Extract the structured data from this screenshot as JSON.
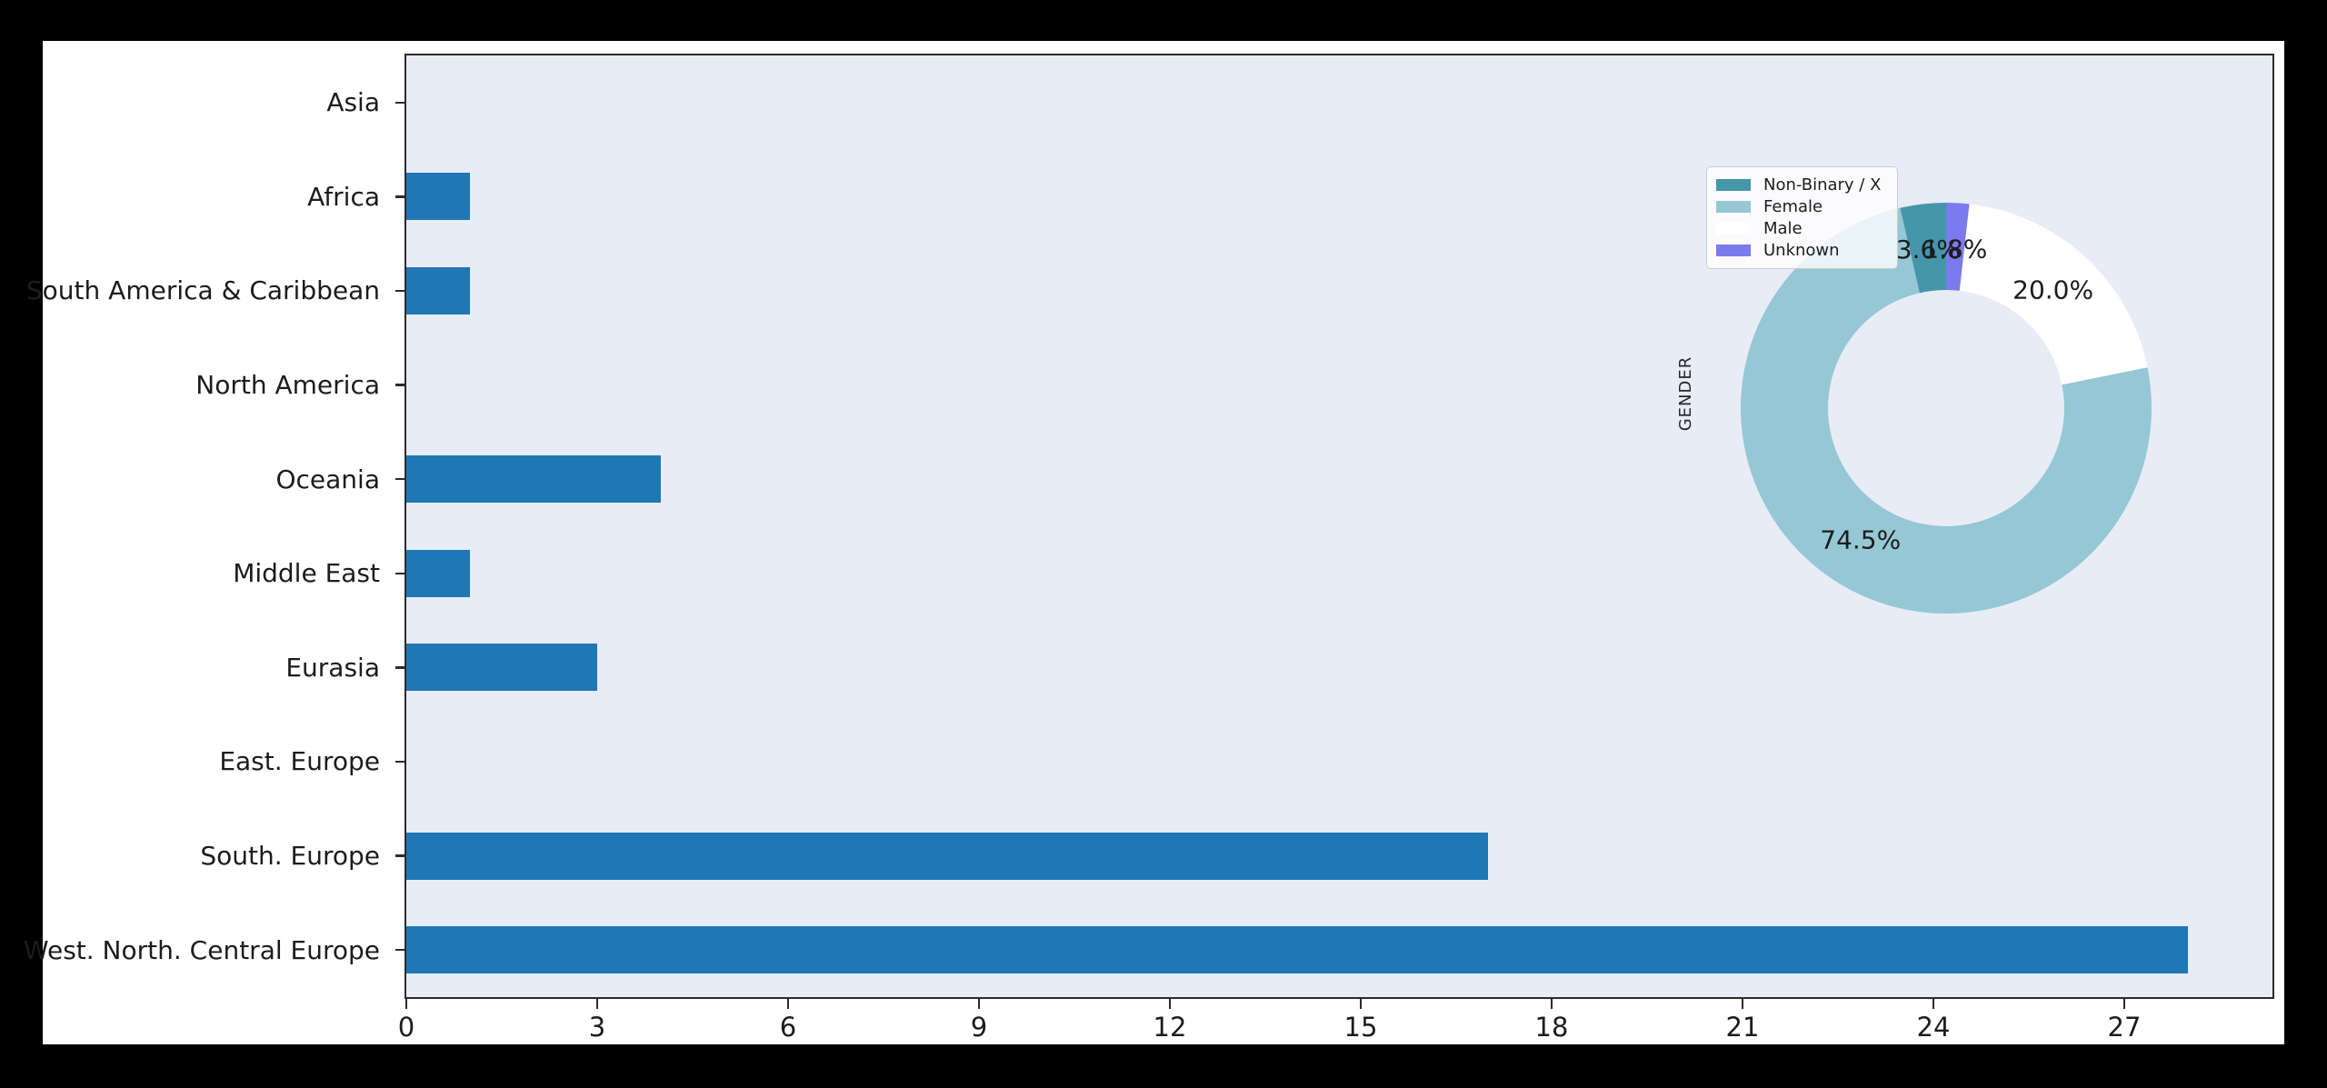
{
  "window": {
    "outer_background": "#000000",
    "figure_background": "#ffffff",
    "plot_background": "#e8ecf7",
    "spine_color": "#2b2b2b",
    "text_color": "#1c1c1c"
  },
  "chart_data": [
    {
      "type": "bar",
      "orientation": "horizontal",
      "title": "",
      "xlabel": "",
      "ylabel": "",
      "categories": [
        "Asia",
        "Africa",
        "South America & Caribbean",
        "North America",
        "Oceania",
        "Middle East",
        "Eurasia",
        "East. Europe",
        "South. Europe",
        "West. North. Central Europe"
      ],
      "values": [
        0,
        1,
        1,
        0,
        4,
        1,
        3,
        0,
        17,
        28
      ],
      "bar_color": "#2077b5",
      "x_ticks": [
        0,
        3,
        6,
        9,
        12,
        15,
        18,
        21,
        24,
        27
      ],
      "xlim": [
        0,
        29.3
      ],
      "grid": false,
      "legend_position": "none"
    },
    {
      "type": "pie",
      "donut": true,
      "hole_ratio": 0.575,
      "start_angle": 90,
      "counterclockwise": true,
      "ylabel": "GENDER",
      "labels": [
        "Non-Binary / X",
        "Female",
        "Male",
        "Unknown"
      ],
      "values": [
        3.6,
        74.5,
        20.0,
        1.8
      ],
      "pct_labels": [
        "3.6%",
        "74.5%",
        "20.0%",
        "1.8%"
      ],
      "colors": [
        "#4696aa",
        "#96c7d4",
        "#ffffff",
        "#7c7aed"
      ],
      "legend": {
        "position": "upper left",
        "entries": [
          "Non-Binary / X",
          "Female",
          "Male",
          "Unknown"
        ]
      }
    }
  ]
}
